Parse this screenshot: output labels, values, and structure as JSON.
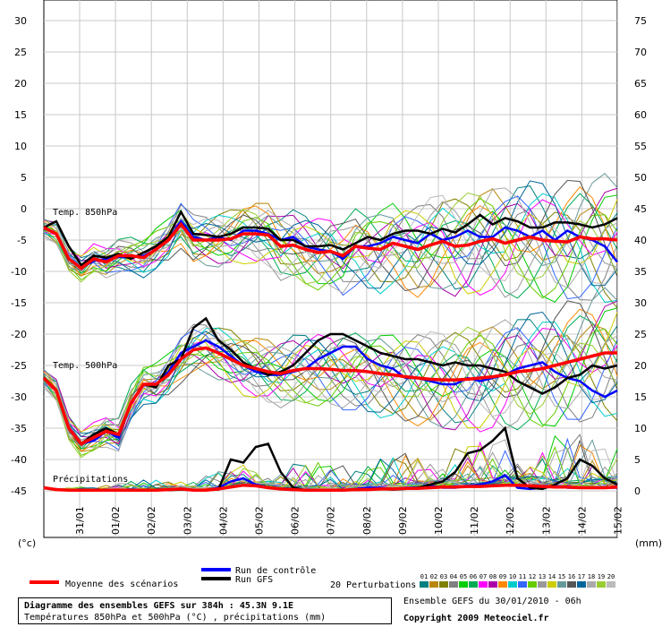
{
  "chart_data": {
    "type": "line",
    "title": "Diagramme des ensembles GEFS sur 384h : 45.3N 9.1E",
    "subtitle": "Températures 850hPa et 500hPa (°C) , précipitations (mm)",
    "left_axis": {
      "label": "(°c)",
      "ticks": [
        30,
        25,
        20,
        15,
        10,
        5,
        0,
        -5,
        -10,
        -15,
        -20,
        -25,
        -30,
        -35,
        -40,
        -45
      ],
      "range": [
        -45,
        30
      ]
    },
    "right_axis": {
      "label": "(mm)",
      "ticks": [
        75,
        70,
        65,
        60,
        55,
        50,
        45,
        40,
        35,
        30,
        25,
        20,
        15,
        10,
        5,
        0
      ],
      "range": [
        0,
        75
      ]
    },
    "x_labels": [
      "31/01",
      "01/02",
      "02/02",
      "03/02",
      "04/02",
      "05/02",
      "06/02",
      "07/02",
      "08/02",
      "09/02",
      "10/02",
      "11/02",
      "12/02",
      "13/02",
      "14/02",
      "15/02"
    ],
    "panel_labels": {
      "t850": "Temp. 850hPa",
      "t500": "Temp. 500hPa",
      "precip": "Précipitations"
    },
    "series": [
      {
        "name": "Moyenne des scénarios",
        "panel": "t850",
        "color": "#ff0000",
        "values": [
          -3,
          -4,
          -8,
          -9.5,
          -8,
          -8.5,
          -7.5,
          -7.5,
          -7.8,
          -6.5,
          -5,
          -2.5,
          -5,
          -5,
          -5,
          -4.8,
          -4,
          -4,
          -4.2,
          -6,
          -5.8,
          -6.5,
          -7,
          -6.8,
          -7.5,
          -6,
          -6.3,
          -6.5,
          -5.5,
          -6,
          -6.5,
          -5.8,
          -5.2,
          -6,
          -5.8,
          -5.2,
          -4.8,
          -5.5,
          -5,
          -4.5,
          -5,
          -5.2,
          -5.3,
          -4.5,
          -4.8,
          -4.8,
          -5
        ]
      },
      {
        "name": "Run de contrôle",
        "panel": "t850",
        "color": "#0000ff",
        "values": [
          -3,
          -4,
          -8,
          -9.5,
          -8.3,
          -8,
          -7.7,
          -7.8,
          -7.5,
          -6.5,
          -5,
          -2,
          -4.5,
          -5,
          -4.5,
          -5,
          -3.5,
          -3.5,
          -4,
          -5,
          -4.5,
          -6,
          -6.5,
          -6.8,
          -8,
          -6,
          -6,
          -5.5,
          -4.5,
          -5,
          -5.5,
          -4,
          -5,
          -4.5,
          -3.5,
          -4.5,
          -4.5,
          -3,
          -3.5,
          -4.5,
          -3.5,
          -5,
          -3.5,
          -4.5,
          -5,
          -6,
          -8.5
        ]
      },
      {
        "name": "Run GFS",
        "panel": "t850",
        "color": "#000000",
        "values": [
          -3,
          -2,
          -6,
          -9,
          -7.5,
          -7.8,
          -7.2,
          -8,
          -7,
          -6,
          -4.5,
          -0.5,
          -4,
          -4.2,
          -4.5,
          -4,
          -3,
          -3,
          -3.2,
          -5,
          -5,
          -6,
          -6,
          -5.8,
          -6.5,
          -5.5,
          -4.5,
          -5,
          -4,
          -3.5,
          -3.5,
          -4,
          -3.2,
          -3.8,
          -2.5,
          -1,
          -2.5,
          -1.5,
          -2,
          -3,
          -3,
          -2.2,
          -2.2,
          -2.5,
          -3,
          -2.5,
          -1.5
        ]
      },
      {
        "name": "Moyenne des scénarios",
        "panel": "t500",
        "color": "#ff0000",
        "values": [
          -27,
          -29,
          -35,
          -37.5,
          -36.5,
          -35.5,
          -36,
          -31,
          -28,
          -28,
          -26.5,
          -24,
          -22.5,
          -22.2,
          -23,
          -24,
          -25,
          -25.5,
          -26,
          -26.3,
          -25.8,
          -25.5,
          -25.5,
          -25.6,
          -25.8,
          -25.8,
          -26,
          -26.3,
          -26.5,
          -26.8,
          -27,
          -27.2,
          -27.3,
          -27.3,
          -27.2,
          -27,
          -26.8,
          -26.5,
          -26,
          -25.8,
          -25.5,
          -25,
          -24.5,
          -24,
          -23.5,
          -23,
          -23
        ]
      },
      {
        "name": "Run de contrôle",
        "panel": "t500",
        "color": "#0000ff",
        "values": [
          -27,
          -29,
          -35,
          -37.5,
          -37,
          -35.5,
          -36.5,
          -31,
          -28,
          -28,
          -26,
          -23,
          -22,
          -21,
          -22,
          -23.5,
          -25,
          -26,
          -26.5,
          -26.5,
          -26,
          -25.5,
          -24,
          -23,
          -22,
          -22,
          -24,
          -25,
          -25.5,
          -27,
          -27,
          -27.5,
          -28,
          -28,
          -27,
          -27.5,
          -27,
          -26.5,
          -25.5,
          -25,
          -24.5,
          -26,
          -27,
          -27.5,
          -29,
          -30,
          -29
        ]
      },
      {
        "name": "Run GFS",
        "panel": "t500",
        "color": "#000000",
        "values": [
          -27,
          -29,
          -35,
          -37.5,
          -36,
          -35,
          -36,
          -31,
          -28,
          -28.5,
          -25,
          -24,
          -19,
          -17.5,
          -21,
          -22.5,
          -24.5,
          -25.5,
          -26.5,
          -26,
          -25,
          -23,
          -21,
          -20,
          -20,
          -21,
          -22,
          -23,
          -23.5,
          -24,
          -24,
          -24.5,
          -25,
          -24.5,
          -25,
          -25,
          -25.5,
          -26,
          -27.5,
          -28.5,
          -29.5,
          -28.5,
          -27,
          -26.5,
          -25,
          -25.5,
          -25
        ]
      },
      {
        "name": "Moyenne des scénarios",
        "panel": "precip",
        "color": "#ff0000",
        "values": [
          0.5,
          0.2,
          0.1,
          0.1,
          0.1,
          0.1,
          0.1,
          0.1,
          0.1,
          0.1,
          0.2,
          0.3,
          0.1,
          0.1,
          0.3,
          0.6,
          0.9,
          0.8,
          0.5,
          0.3,
          0.2,
          0.1,
          0.1,
          0.1,
          0.1,
          0.2,
          0.2,
          0.3,
          0.3,
          0.4,
          0.4,
          0.5,
          0.6,
          0.6,
          0.7,
          0.7,
          0.8,
          0.9,
          0.9,
          0.8,
          0.7,
          0.6,
          0.6,
          0.5,
          0.5,
          0.5,
          0.6
        ]
      },
      {
        "name": "Run de contrôle",
        "panel": "precip",
        "color": "#0000ff",
        "values": [
          0.5,
          0.2,
          0.1,
          0.1,
          0.1,
          0.1,
          0.1,
          0.1,
          0.1,
          0.1,
          0.2,
          0.3,
          0.1,
          0.1,
          0.5,
          1.5,
          2,
          1,
          0.5,
          0.3,
          0.1,
          0.1,
          0.1,
          0.1,
          0.1,
          0.3,
          0.5,
          0.5,
          0.3,
          0.5,
          0.5,
          0.8,
          0.5,
          0.5,
          0.8,
          1,
          1.5,
          2.5,
          0.5,
          0.3,
          0.5,
          0.8,
          0.5,
          0.5,
          0.5,
          0.5,
          0.5
        ]
      },
      {
        "name": "Run GFS",
        "panel": "precip",
        "color": "#000000",
        "values": [
          0.5,
          0.2,
          0.1,
          0.1,
          0.1,
          0.1,
          0.1,
          0.1,
          0.1,
          0.1,
          0.1,
          0.2,
          0.1,
          0.1,
          0.2,
          5,
          4.5,
          7,
          7.5,
          3,
          0.5,
          0.1,
          0.1,
          0.1,
          0.1,
          0.1,
          0.2,
          0.3,
          0.2,
          0.3,
          0.5,
          1,
          1.5,
          3,
          6,
          6.5,
          8,
          10,
          2,
          0.5,
          0.3,
          1,
          2,
          5,
          4,
          2,
          1
        ]
      }
    ],
    "perturbation_colors": [
      "#008080",
      "#b8860b",
      "#808000",
      "#808080",
      "#00cc00",
      "#00aa55",
      "#ff00ff",
      "#aa00aa",
      "#ff8800",
      "#00cccc",
      "#3366ff",
      "#66cc00",
      "#999999",
      "#cccc00",
      "#669999",
      "#555555",
      "#006699",
      "#aaaaaa",
      "#99cc33",
      "#bbbbbb"
    ]
  },
  "legend": {
    "moyenne": "Moyenne des scénarios",
    "controle": "Run de contrôle",
    "gfs": "Run GFS",
    "perturbations": "20 Perturbations",
    "perturbation_numbers": [
      "01",
      "02",
      "03",
      "04",
      "05",
      "06",
      "07",
      "08",
      "09",
      "10",
      "11",
      "12",
      "13",
      "14",
      "15",
      "16",
      "17",
      "18",
      "19",
      "20"
    ]
  },
  "footer": {
    "title_line": "Diagramme des ensembles GEFS sur 384h : 45.3N 9.1E",
    "subtitle_line": "Températures 850hPa et 500hPa (°C) , précipitations (mm)",
    "ensemble_run": "Ensemble GEFS du 30/01/2010 - 06h",
    "copyright": "Copyright 2009 Meteociel.fr"
  }
}
